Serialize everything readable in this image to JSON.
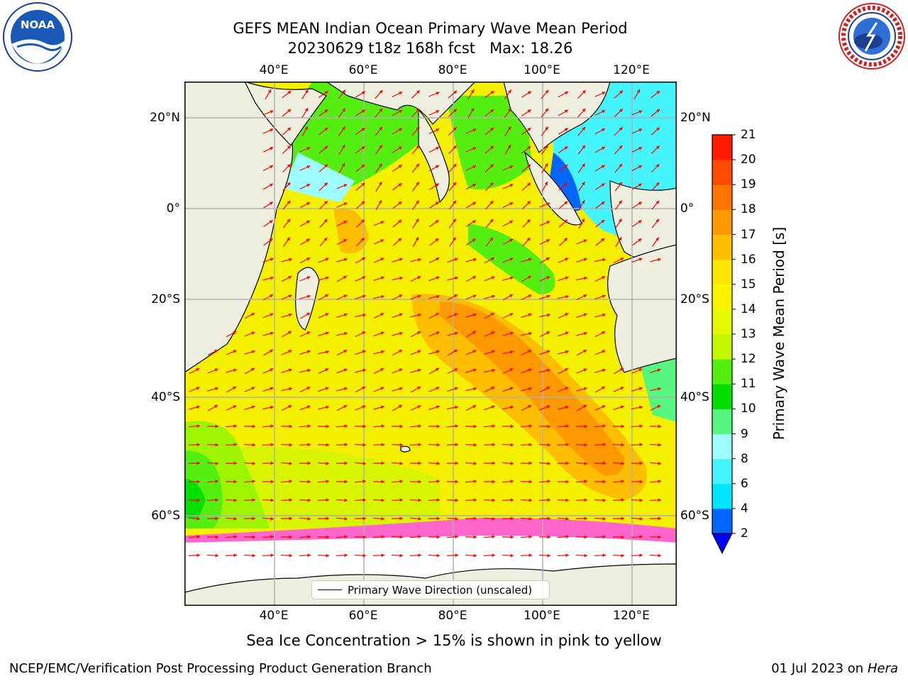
{
  "title": {
    "line1": "GEFS MEAN Indian Ocean Primary Wave Mean Period",
    "line2": "20230629 t18z 168h fcst   Max: 18.26"
  },
  "map": {
    "lon_ticks": [
      "40°E",
      "60°E",
      "80°E",
      "100°E",
      "120°E"
    ],
    "lat_ticks": [
      "20°N",
      "0°",
      "20°S",
      "40°S",
      "60°S"
    ],
    "legend_label": "Primary Wave Direction (unscaled)",
    "colors": {
      "land": "#efefdf",
      "grid": "#b0b0b0",
      "arrow": "#ff0000",
      "ice_note": "pink to yellow"
    }
  },
  "colorbar": {
    "label": "Primary Wave Mean Period [s]",
    "ticks": [
      "2",
      "4",
      "6",
      "8",
      "9",
      "10",
      "11",
      "12",
      "13",
      "14",
      "15",
      "16",
      "17",
      "18",
      "19",
      "20",
      "21"
    ],
    "colors": [
      "#0066ff",
      "#00e5ff",
      "#44f4ff",
      "#9efdfd",
      "#55f77f",
      "#00e000",
      "#55ee11",
      "#c2f700",
      "#e5f900",
      "#f8f400",
      "#ffe600",
      "#ffbf00",
      "#ff9900",
      "#ff7300",
      "#ff4a00",
      "#ff1a00"
    ],
    "extend_min_color": "#0000ff"
  },
  "ice_note": "Sea Ice Concentration > 15% is shown in pink to yellow",
  "footer": {
    "left": "NCEP/EMC/Verification Post Processing Product Generation Branch",
    "right_date": "01 Jul 2023 on",
    "right_machine": "Hera"
  },
  "logos": {
    "left_text": "NOAA",
    "right_text": "NATIONAL WEATHER SERVICE"
  }
}
